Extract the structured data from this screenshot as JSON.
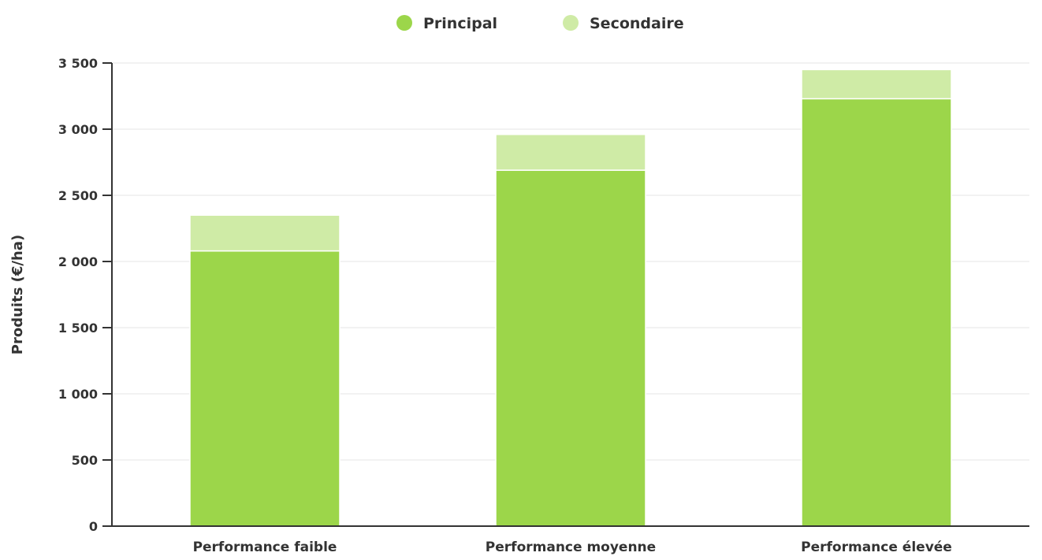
{
  "chart_data": {
    "type": "bar",
    "stacked": true,
    "categories": [
      "Performance faible",
      "Performance moyenne",
      "Performance élevée"
    ],
    "series": [
      {
        "name": "Principal",
        "color": "#9cd64a",
        "values": [
          2080,
          2690,
          3230
        ]
      },
      {
        "name": "Secondaire",
        "color": "#cfeba6",
        "values": [
          270,
          270,
          220
        ]
      }
    ],
    "title": "",
    "xlabel": "",
    "ylabel": "Produits (€/ha)",
    "ylim": [
      0,
      3500
    ],
    "yticks": [
      0,
      500,
      1000,
      1500,
      2000,
      2500,
      3000,
      3500
    ],
    "ytick_labels": [
      "0",
      "500",
      "1 000",
      "1 500",
      "2 000",
      "2 500",
      "3 000",
      "3 500"
    ],
    "grid": true,
    "legend_position": "top-center"
  }
}
